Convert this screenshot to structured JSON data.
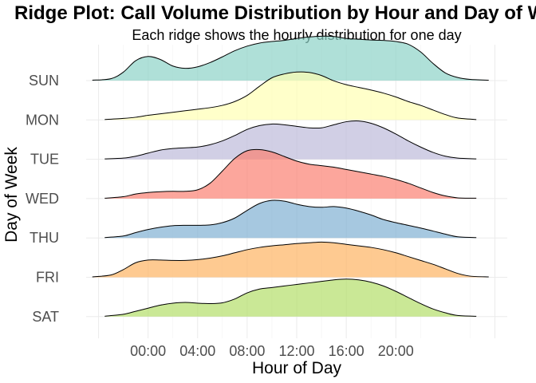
{
  "chart_data": {
    "type": "ridgeline",
    "title": "Ridge Plot: Call Volume Distribution by Hour and Day of Week",
    "subtitle": "Each ridge shows the hourly distribution for one day",
    "xlabel": "Hour of Day",
    "ylabel": "Day of Week",
    "x_ticks": [
      "00:00",
      "04:00",
      "08:00",
      "12:00",
      "16:00",
      "20:00"
    ],
    "x_tick_values": [
      0,
      4,
      8,
      12,
      16,
      20
    ],
    "xlim": [
      -5,
      29
    ],
    "grid": true,
    "legend": "none",
    "series": [
      {
        "name": "SUN",
        "color": "#8DD3C7",
        "x": [
          -4.5,
          -3,
          -2,
          -1,
          0,
          1,
          2,
          3,
          4,
          5,
          6,
          7,
          8,
          9,
          10,
          11,
          12,
          13,
          14,
          15,
          16,
          17,
          18,
          19,
          20,
          21,
          22,
          23,
          24,
          25,
          26,
          27.5
        ],
        "y": [
          0.01,
          0.05,
          0.22,
          0.52,
          0.63,
          0.55,
          0.38,
          0.32,
          0.36,
          0.47,
          0.62,
          0.78,
          0.9,
          0.98,
          1.02,
          1.05,
          1.1,
          1.14,
          1.16,
          1.15,
          1.1,
          1.08,
          1.06,
          1.05,
          1.02,
          0.95,
          0.75,
          0.45,
          0.2,
          0.08,
          0.03,
          0.01
        ]
      },
      {
        "name": "MON",
        "color": "#FFFFB3",
        "x": [
          -3.5,
          -2,
          -1,
          0,
          1,
          2,
          3,
          4,
          5,
          6,
          7,
          8,
          9,
          10,
          11,
          12,
          13,
          14,
          15,
          16,
          17,
          18,
          19,
          20,
          21,
          22,
          23,
          24,
          25,
          26.5
        ],
        "y": [
          0.01,
          0.04,
          0.07,
          0.12,
          0.16,
          0.2,
          0.24,
          0.28,
          0.32,
          0.38,
          0.48,
          0.64,
          0.88,
          1.1,
          1.2,
          1.25,
          1.24,
          1.16,
          1.02,
          0.92,
          0.85,
          0.78,
          0.7,
          0.6,
          0.48,
          0.38,
          0.26,
          0.14,
          0.05,
          0.01
        ]
      },
      {
        "name": "TUE",
        "color": "#BEBADA",
        "x": [
          -3.5,
          -2,
          -1,
          0,
          1,
          2,
          3,
          4,
          5,
          6,
          7,
          8,
          9,
          10,
          11,
          12,
          13,
          14,
          15,
          16,
          17,
          18,
          19,
          20,
          21,
          22,
          23,
          24,
          25,
          26.5
        ],
        "y": [
          0.01,
          0.03,
          0.08,
          0.16,
          0.24,
          0.28,
          0.3,
          0.32,
          0.38,
          0.48,
          0.62,
          0.78,
          0.88,
          0.92,
          0.9,
          0.86,
          0.82,
          0.82,
          0.9,
          0.98,
          1.0,
          0.94,
          0.82,
          0.66,
          0.48,
          0.32,
          0.18,
          0.08,
          0.03,
          0.01
        ]
      },
      {
        "name": "WED",
        "color": "#FB8072",
        "x": [
          -3.5,
          -2,
          -1,
          0,
          1,
          2,
          3,
          4,
          5,
          6,
          7,
          8,
          9,
          10,
          11,
          12,
          13,
          14,
          15,
          16,
          17,
          18,
          19,
          20,
          21,
          22,
          23,
          24,
          25,
          26.5
        ],
        "y": [
          0.01,
          0.05,
          0.12,
          0.16,
          0.18,
          0.19,
          0.19,
          0.23,
          0.4,
          0.72,
          1.05,
          1.25,
          1.28,
          1.22,
          1.1,
          0.98,
          0.9,
          0.86,
          0.82,
          0.76,
          0.7,
          0.64,
          0.58,
          0.5,
          0.4,
          0.28,
          0.16,
          0.07,
          0.02,
          0.01
        ]
      },
      {
        "name": "THU",
        "color": "#80B1D3",
        "x": [
          -3.5,
          -2,
          -1,
          0,
          1,
          2,
          3,
          4,
          5,
          6,
          7,
          8,
          9,
          10,
          11,
          12,
          13,
          14,
          15,
          16,
          17,
          18,
          19,
          20,
          21,
          22,
          23,
          24,
          25,
          26.5
        ],
        "y": [
          0.01,
          0.05,
          0.14,
          0.22,
          0.28,
          0.32,
          0.33,
          0.33,
          0.34,
          0.4,
          0.52,
          0.72,
          0.9,
          0.98,
          0.96,
          0.88,
          0.82,
          0.8,
          0.82,
          0.78,
          0.7,
          0.6,
          0.48,
          0.4,
          0.33,
          0.26,
          0.18,
          0.1,
          0.03,
          0.01
        ]
      },
      {
        "name": "FRI",
        "color": "#FDB462",
        "x": [
          -4.5,
          -3,
          -2,
          -1,
          0,
          1,
          2,
          3,
          4,
          5,
          6,
          7,
          8,
          9,
          10,
          11,
          12,
          13,
          14,
          15,
          16,
          17,
          18,
          19,
          20,
          21,
          22,
          23,
          24,
          25,
          26,
          27.5
        ],
        "y": [
          0.01,
          0.06,
          0.2,
          0.38,
          0.45,
          0.45,
          0.44,
          0.44,
          0.46,
          0.5,
          0.56,
          0.64,
          0.72,
          0.78,
          0.82,
          0.85,
          0.88,
          0.9,
          0.92,
          0.9,
          0.86,
          0.82,
          0.78,
          0.72,
          0.64,
          0.54,
          0.44,
          0.34,
          0.22,
          0.1,
          0.03,
          0.01
        ]
      },
      {
        "name": "SAT",
        "color": "#B3DE69",
        "x": [
          -3.5,
          -2,
          -1,
          0,
          1,
          2,
          3,
          4,
          5,
          6,
          7,
          8,
          9,
          10,
          11,
          12,
          13,
          14,
          15,
          16,
          17,
          18,
          19,
          20,
          21,
          22,
          23,
          24,
          25,
          26.5
        ],
        "y": [
          0.01,
          0.06,
          0.14,
          0.22,
          0.3,
          0.35,
          0.37,
          0.35,
          0.34,
          0.36,
          0.46,
          0.62,
          0.72,
          0.76,
          0.8,
          0.84,
          0.88,
          0.92,
          0.96,
          0.98,
          0.96,
          0.9,
          0.8,
          0.66,
          0.5,
          0.34,
          0.2,
          0.1,
          0.03,
          0.01
        ]
      }
    ]
  }
}
